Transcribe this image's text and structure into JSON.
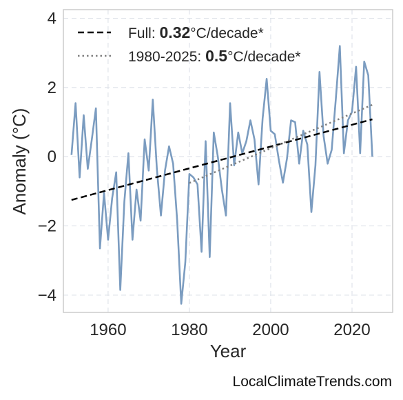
{
  "chart_data": {
    "type": "line",
    "xlabel": "Year",
    "ylabel": "Anomaly (°C)",
    "xlim": [
      1949,
      2030
    ],
    "ylim": [
      -4.5,
      4.25
    ],
    "xticks": [
      1960,
      1980,
      2000,
      2020
    ],
    "yticks": [
      -4,
      -2,
      0,
      2,
      4
    ],
    "ytick_labels": [
      "−4",
      "−2",
      "0",
      "2",
      "4"
    ],
    "grid": true,
    "legend_position": "top-left",
    "series": [
      {
        "style": "solid",
        "color": "#7b9cc0",
        "x": [
          1951,
          1952,
          1953,
          1954,
          1955,
          1956,
          1957,
          1958,
          1959,
          1960,
          1961,
          1962,
          1963,
          1964,
          1965,
          1966,
          1967,
          1968,
          1969,
          1970,
          1971,
          1972,
          1973,
          1974,
          1975,
          1976,
          1977,
          1978,
          1979,
          1980,
          1981,
          1982,
          1983,
          1984,
          1985,
          1986,
          1987,
          1988,
          1989,
          1990,
          1991,
          1992,
          1993,
          1994,
          1995,
          1996,
          1997,
          1998,
          1999,
          2000,
          2001,
          2002,
          2003,
          2004,
          2005,
          2006,
          2007,
          2008,
          2009,
          2010,
          2011,
          2012,
          2013,
          2014,
          2015,
          2016,
          2017,
          2018,
          2019,
          2020,
          2021,
          2022,
          2023,
          2024,
          2025
        ],
        "y": [
          0.05,
          1.55,
          -0.6,
          1.2,
          -0.35,
          0.5,
          1.4,
          -2.65,
          -1.05,
          -2.4,
          -1.2,
          -0.45,
          -3.85,
          -1.3,
          0.1,
          -2.4,
          -0.95,
          -1.85,
          0.5,
          -0.4,
          1.65,
          -0.35,
          -1.7,
          -0.4,
          0.3,
          -0.2,
          -1.85,
          -4.25,
          -3.05,
          -0.5,
          -0.6,
          -0.8,
          -2.75,
          0.45,
          -2.9,
          0.7,
          0.0,
          -0.95,
          -1.7,
          1.55,
          -0.25,
          0.7,
          0.1,
          0.45,
          1.05,
          0.5,
          -0.8,
          1.1,
          2.25,
          0.75,
          0.65,
          -0.1,
          -0.75,
          -0.05,
          1.05,
          1.0,
          -0.2,
          0.75,
          0.35,
          -1.6,
          -0.25,
          2.45,
          0.6,
          -0.2,
          0.2,
          1.65,
          3.2,
          0.1,
          1.05,
          1.3,
          2.6,
          0.1,
          2.75,
          2.35,
          0.0
        ]
      },
      {
        "name": "Full",
        "style": "dashed",
        "color": "#000000",
        "x": [
          1951,
          2025
        ],
        "y": [
          -1.25,
          1.08
        ]
      },
      {
        "name": "1980-2025",
        "style": "dotted",
        "color": "#808080",
        "x": [
          1980,
          2025
        ],
        "y": [
          -0.76,
          1.5
        ]
      }
    ],
    "legend": [
      {
        "prefix": "Full: ",
        "value": "0.32",
        "suffix": "°C/decade*"
      },
      {
        "prefix": "1980-2025: ",
        "value": "0.5",
        "suffix": "°C/decade*"
      }
    ]
  },
  "credit": "LocalClimateTrends.com"
}
